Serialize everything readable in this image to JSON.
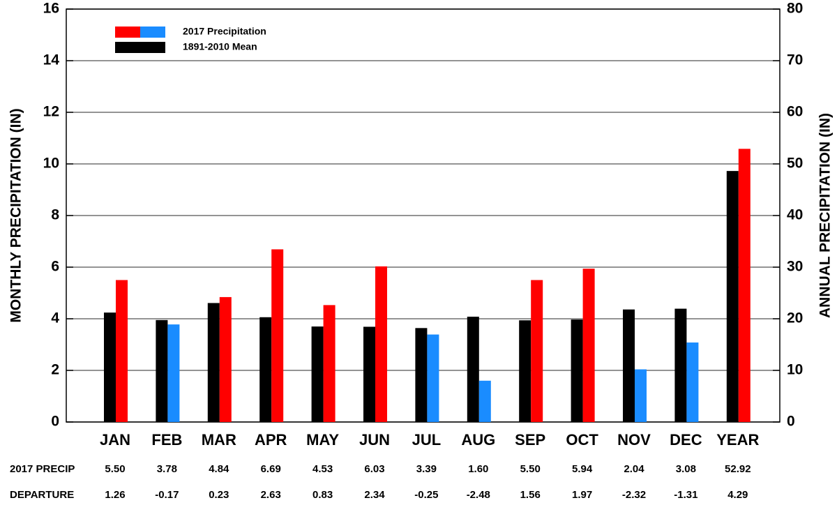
{
  "chart_data": {
    "type": "bar",
    "ylabel": "MONTHLY PRECIPITATION (IN)",
    "y2label": "ANNUAL PRECIPITATION (IN)",
    "categories": [
      "JAN",
      "FEB",
      "MAR",
      "APR",
      "MAY",
      "JUN",
      "JUL",
      "AUG",
      "SEP",
      "OCT",
      "NOV",
      "DEC",
      "YEAR"
    ],
    "category_axis": [
      "y",
      "y",
      "y",
      "y",
      "y",
      "y",
      "y",
      "y",
      "y",
      "y",
      "y",
      "y",
      "y2"
    ],
    "series": [
      {
        "name": "1891-2010 Mean",
        "color": "#000000",
        "values": [
          4.24,
          3.95,
          4.61,
          4.06,
          3.7,
          3.69,
          3.64,
          4.08,
          3.94,
          3.97,
          4.36,
          4.39,
          48.63
        ]
      },
      {
        "name": "2017 Precipitation",
        "row_label": "2017 PRECIP",
        "legend_colors": [
          "#ff0000",
          "#1a8cff"
        ],
        "colors": [
          "#ff0000",
          "#1a8cff",
          "#ff0000",
          "#ff0000",
          "#ff0000",
          "#ff0000",
          "#1a8cff",
          "#1a8cff",
          "#ff0000",
          "#ff0000",
          "#1a8cff",
          "#1a8cff",
          "#ff0000"
        ],
        "values": [
          5.5,
          3.78,
          4.84,
          6.69,
          4.53,
          6.03,
          3.39,
          1.6,
          5.5,
          5.94,
          2.04,
          3.08,
          52.92
        ],
        "value_labels": [
          "5.50",
          "3.78",
          "4.84",
          "6.69",
          "4.53",
          "6.03",
          "3.39",
          "1.60",
          "5.50",
          "5.94",
          "2.04",
          "3.08",
          "52.92"
        ]
      }
    ],
    "legend_order": [
      1,
      0
    ],
    "departure": {
      "label": "DEPARTURE",
      "values": [
        1.26,
        -0.17,
        0.23,
        2.63,
        0.83,
        2.34,
        -0.25,
        -2.48,
        1.56,
        1.97,
        -2.32,
        -1.31,
        4.29
      ],
      "value_labels": [
        "1.26",
        "-0.17",
        "0.23",
        "2.63",
        "0.83",
        "2.34",
        "-0.25",
        "-2.48",
        "1.56",
        "1.97",
        "-2.32",
        "-1.31",
        "4.29"
      ]
    },
    "ylim": [
      0,
      16
    ],
    "yticks": [
      0,
      2,
      4,
      6,
      8,
      10,
      12,
      14,
      16
    ],
    "y2lim": [
      0,
      80
    ],
    "y2ticks": [
      0,
      10,
      20,
      30,
      40,
      50,
      60,
      70,
      80
    ],
    "grid": true
  }
}
